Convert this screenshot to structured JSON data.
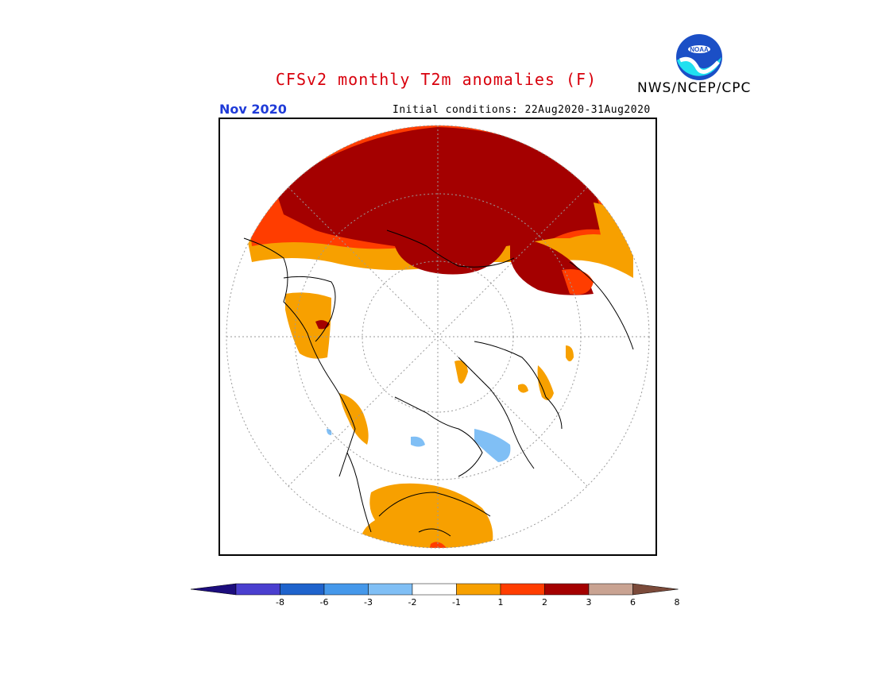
{
  "title": "CFSv2 monthly T2m anomalies (F)",
  "org": "NWS/NCEP/CPC",
  "logo_text": "NOAA",
  "month": "Nov 2020",
  "initial_conditions": "Initial conditions: 22Aug2020-31Aug2020",
  "legend": {
    "ticks": [
      "-8",
      "-6",
      "-3",
      "-2",
      "-1",
      "1",
      "2",
      "3",
      "6",
      "8"
    ],
    "colors": [
      "#1c0d7d",
      "#4a3fcf",
      "#1f63cc",
      "#4598ea",
      "#80bff5",
      "#ffffff",
      "#f7a000",
      "#ff3d00",
      "#a40000",
      "#c9a392",
      "#7b4a3a"
    ]
  }
}
